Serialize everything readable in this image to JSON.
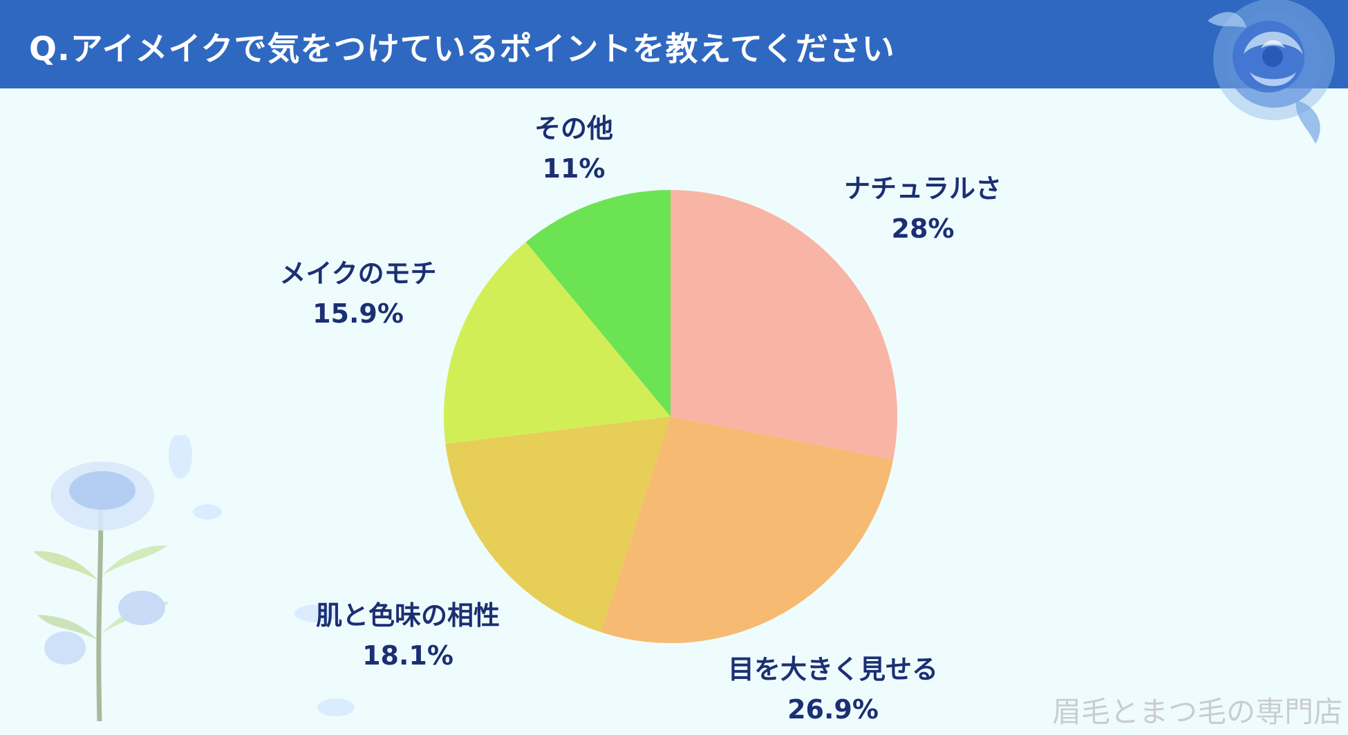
{
  "header": {
    "title": "Q.アイメイクで気をつけているポイントを教えてください"
  },
  "colors": {
    "header_background": "#2f68c0",
    "label_text": "#1b2f73",
    "page_background": "#effcfd"
  },
  "chart_data": {
    "type": "pie",
    "title": "",
    "slices": [
      {
        "label": "ナチュラルさ",
        "value_label": "28%",
        "value": 28,
        "color": "#f8b5a6"
      },
      {
        "label": "目を大きく見せる",
        "value_label": "26.9%",
        "value": 26.9,
        "color": "#f6ba72"
      },
      {
        "label": "肌と色味の相性",
        "value_label": "18.1%",
        "value": 18.1,
        "color": "#e6ce57"
      },
      {
        "label": "メイクのモチ",
        "value_label": "15.9%",
        "value": 15.9,
        "color": "#d2ee57"
      },
      {
        "label": "その他",
        "value_label": "11%",
        "value": 11,
        "color": "#6ce353"
      }
    ],
    "start": "top",
    "direction": "clockwise",
    "legend": "none"
  },
  "watermark": {
    "text": "眉毛とまつ毛の専門店"
  }
}
